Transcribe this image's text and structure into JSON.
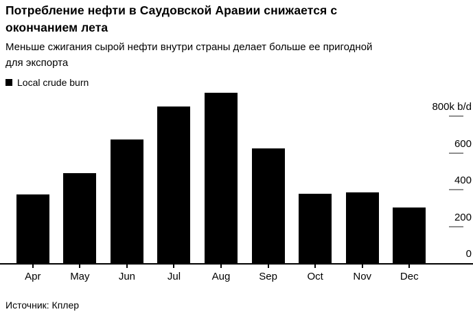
{
  "header": {
    "title_lines": [
      "Потребление нефти в Саудовской Аравии снижается с",
      "окончанием лета"
    ],
    "subtitle_lines": [
      "Меньше сжигания сырой нефти внутри страны делает больше ее пригодной",
      "для экспорта"
    ]
  },
  "legend": {
    "label": "Local crude burn",
    "color": "#000000"
  },
  "source": "Источник: Кплер",
  "colors": {
    "bar": "#000000",
    "axis_line": "#000000",
    "ytick_line": "#8f8f8f",
    "text": "#000000",
    "background": "#ffffff"
  },
  "chart_data": {
    "type": "bar",
    "title": "Потребление нефти в Саудовской Аравии снижается с окончанием лета",
    "subtitle": "Меньше сжигания сырой нефти внутри страны делает больше ее пригодной для экспорта",
    "categories": [
      "Apr",
      "May",
      "Jun",
      "Jul",
      "Aug",
      "Sep",
      "Oct",
      "Nov",
      "Dec"
    ],
    "series": [
      {
        "name": "Local crude burn",
        "values": [
          375,
          490,
          675,
          855,
          930,
          625,
          380,
          385,
          305
        ]
      }
    ],
    "unit": "k b/d",
    "xlabel": "",
    "ylabel": "",
    "yticks": [
      {
        "value": 800,
        "label": "800k b/d"
      },
      {
        "value": 600,
        "label": "600"
      },
      {
        "value": 400,
        "label": "400"
      },
      {
        "value": 200,
        "label": "200"
      },
      {
        "value": 0,
        "label": "0"
      }
    ],
    "ylim": [
      0,
      950
    ],
    "grid": false,
    "legend_position": "top-left",
    "yaxis_side": "right",
    "source": "Источник: Кплер"
  }
}
